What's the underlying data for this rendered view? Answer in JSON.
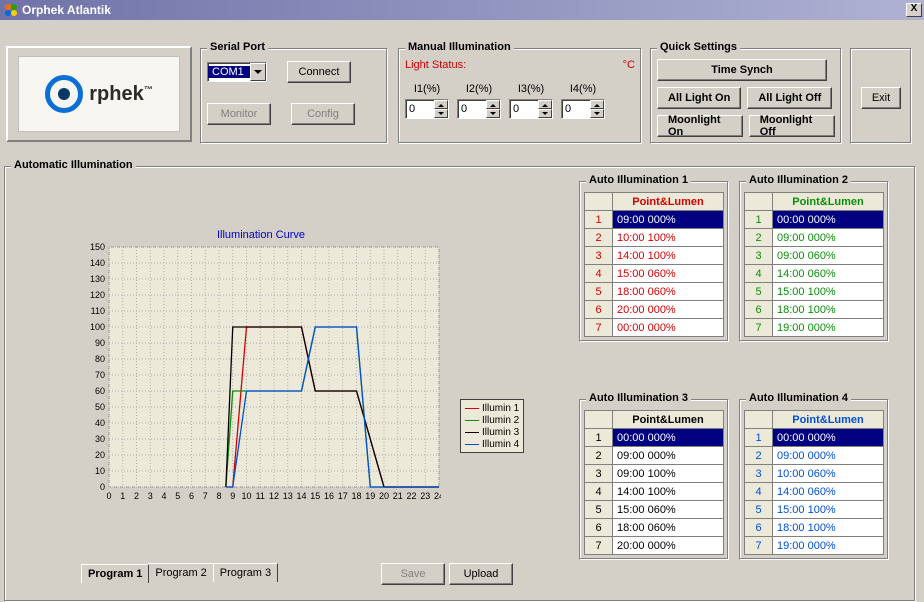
{
  "window": {
    "title": "Orphek Atlantik",
    "close_label": "X"
  },
  "logo": {
    "brand": "rphek",
    "tm": "™"
  },
  "serial_port": {
    "title": "Serial Port",
    "port_value": "COM1",
    "connect": "Connect",
    "monitor": "Monitor",
    "config": "Config"
  },
  "manual": {
    "title": "Manual Illumination",
    "light_status_label": "Light Status:",
    "temp_unit": "°C",
    "channels": [
      "I1(%)",
      "I2(%)",
      "I3(%)",
      "I4(%)"
    ],
    "values": [
      "0",
      "0",
      "0",
      "0"
    ]
  },
  "quick": {
    "title": "Quick Settings",
    "time_synch": "Time Synch",
    "all_on": "All Light On",
    "all_off": "All Light Off",
    "moon_on": "Moonlight On",
    "moon_off": "Moonlight Off"
  },
  "exit_label": "Exit",
  "auto_section_title": "Automatic Illumination",
  "chart": {
    "type": "line",
    "title": "Illumination Curve",
    "xlim": [
      0,
      24
    ],
    "ylim": [
      0,
      150
    ],
    "xtick_step": 1,
    "ytick_step": 10,
    "background_color": "#ece9d8",
    "grid_color": "#b0b0b0",
    "border_style": "dotted",
    "title_color": "#0000cc",
    "legend_position": "right",
    "legend_bg": "#ece9d8",
    "series": [
      {
        "name": "Illumin 1",
        "color": "#d40000",
        "points": [
          [
            8.5,
            0
          ],
          [
            9,
            0
          ],
          [
            10,
            100
          ],
          [
            14,
            100
          ],
          [
            15,
            60
          ],
          [
            18,
            60
          ],
          [
            20,
            0
          ],
          [
            24,
            0
          ]
        ]
      },
      {
        "name": "Illumin 2",
        "color": "#0a8f0a",
        "points": [
          [
            8.5,
            0
          ],
          [
            9,
            60
          ],
          [
            9,
            60
          ],
          [
            14,
            60
          ],
          [
            15,
            100
          ],
          [
            18,
            100
          ],
          [
            19,
            0
          ],
          [
            24,
            0
          ]
        ]
      },
      {
        "name": "Illumin 3",
        "color": "#000000",
        "points": [
          [
            8.5,
            0
          ],
          [
            9,
            100
          ],
          [
            9,
            100
          ],
          [
            14,
            100
          ],
          [
            15,
            60
          ],
          [
            18,
            60
          ],
          [
            20,
            0
          ],
          [
            24,
            0
          ]
        ]
      },
      {
        "name": "Illumin 4",
        "color": "#004fd6",
        "points": [
          [
            8.5,
            0
          ],
          [
            9,
            0
          ],
          [
            10,
            60
          ],
          [
            14,
            60
          ],
          [
            15,
            100
          ],
          [
            18,
            100
          ],
          [
            19,
            0
          ],
          [
            24,
            0
          ]
        ]
      }
    ]
  },
  "auto_tables": [
    {
      "title": "Auto Illumination 1",
      "header": "Point&Lumen",
      "header_color": "#d40000",
      "selected_row": 0,
      "row_color": "#d40000",
      "rows": [
        "09:00  000%",
        "10:00  100%",
        "14:00  100%",
        "15:00  060%",
        "18:00  060%",
        "20:00  000%",
        "00:00  000%"
      ]
    },
    {
      "title": "Auto Illumination 2",
      "header": "Point&Lumen",
      "header_color": "#0a8f0a",
      "selected_row": 0,
      "row_color": "#0a8f0a",
      "rows": [
        "00:00  000%",
        "09:00  000%",
        "09:00  060%",
        "14:00  060%",
        "15:00  100%",
        "18:00  100%",
        "19:00  000%"
      ]
    },
    {
      "title": "Auto Illumination 3",
      "header": "Point&Lumen",
      "header_color": "#000000",
      "selected_row": 0,
      "row_color": "#000000",
      "rows": [
        "00:00  000%",
        "09:00  000%",
        "09:00  100%",
        "14:00  100%",
        "15:00  060%",
        "18:00  060%",
        "20:00  000%"
      ]
    },
    {
      "title": "Auto Illumination 4",
      "header": "Point&Lumen",
      "header_color": "#004fd6",
      "selected_row": 0,
      "row_color": "#004fd6",
      "rows": [
        "00:00  000%",
        "09:00  000%",
        "10:00  060%",
        "14:00  060%",
        "15:00  100%",
        "18:00  100%",
        "19:00  000%"
      ]
    }
  ],
  "programs": {
    "tabs": [
      "Program 1",
      "Program 2",
      "Program 3"
    ],
    "active": 0
  },
  "actions": {
    "save": "Save",
    "upload": "Upload"
  }
}
